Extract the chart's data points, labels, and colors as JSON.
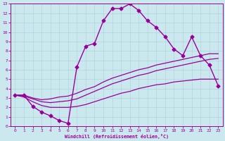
{
  "xlabel": "Windchill (Refroidissement éolien,°C)",
  "bg_color": "#cbe8ee",
  "grid_color": "#b0d4dc",
  "line_color": "#990099",
  "xlim": [
    -0.5,
    23.5
  ],
  "ylim": [
    0,
    13
  ],
  "xticks": [
    0,
    1,
    2,
    3,
    4,
    5,
    6,
    7,
    8,
    9,
    10,
    11,
    12,
    13,
    14,
    15,
    16,
    17,
    18,
    19,
    20,
    21,
    22,
    23
  ],
  "yticks": [
    0,
    1,
    2,
    3,
    4,
    5,
    6,
    7,
    8,
    9,
    10,
    11,
    12,
    13
  ],
  "curves": [
    {
      "x": [
        0,
        1,
        2,
        3,
        4,
        5,
        6,
        7,
        8,
        9,
        10,
        11,
        12,
        13,
        14,
        15,
        16,
        17,
        18,
        19,
        20,
        21,
        22,
        23
      ],
      "y": [
        3.3,
        3.3,
        2.1,
        1.5,
        1.1,
        0.6,
        0.3,
        6.3,
        8.5,
        8.8,
        11.2,
        12.5,
        12.5,
        13.0,
        12.3,
        11.2,
        10.5,
        9.5,
        8.2,
        7.5,
        9.5,
        7.5,
        6.5,
        4.3
      ],
      "marker": "D",
      "markersize": 2.5,
      "linewidth": 1.0
    },
    {
      "x": [
        0,
        1,
        2,
        3,
        4,
        5,
        6,
        7,
        8,
        9,
        10,
        11,
        12,
        13,
        14,
        15,
        16,
        17,
        18,
        19,
        20,
        21,
        22,
        23
      ],
      "y": [
        3.3,
        3.3,
        3.0,
        2.8,
        2.9,
        3.1,
        3.2,
        3.5,
        3.9,
        4.2,
        4.7,
        5.1,
        5.4,
        5.7,
        6.0,
        6.2,
        6.5,
        6.7,
        6.9,
        7.1,
        7.3,
        7.5,
        7.7,
        7.7
      ],
      "marker": null,
      "markersize": 0,
      "linewidth": 0.9
    },
    {
      "x": [
        0,
        1,
        2,
        3,
        4,
        5,
        6,
        7,
        8,
        9,
        10,
        11,
        12,
        13,
        14,
        15,
        16,
        17,
        18,
        19,
        20,
        21,
        22,
        23
      ],
      "y": [
        3.3,
        3.2,
        2.9,
        2.6,
        2.5,
        2.6,
        2.7,
        2.9,
        3.3,
        3.7,
        4.1,
        4.5,
        4.8,
        5.1,
        5.4,
        5.6,
        5.9,
        6.1,
        6.3,
        6.5,
        6.7,
        6.9,
        7.1,
        7.2
      ],
      "marker": null,
      "markersize": 0,
      "linewidth": 0.9
    },
    {
      "x": [
        0,
        1,
        2,
        3,
        4,
        5,
        6,
        7,
        8,
        9,
        10,
        11,
        12,
        13,
        14,
        15,
        16,
        17,
        18,
        19,
        20,
        21,
        22,
        23
      ],
      "y": [
        3.3,
        3.1,
        2.6,
        2.2,
        2.0,
        2.0,
        2.0,
        2.1,
        2.3,
        2.6,
        2.9,
        3.2,
        3.5,
        3.7,
        4.0,
        4.2,
        4.4,
        4.5,
        4.7,
        4.8,
        4.9,
        5.0,
        5.0,
        5.0
      ],
      "marker": null,
      "markersize": 0,
      "linewidth": 0.9
    }
  ]
}
